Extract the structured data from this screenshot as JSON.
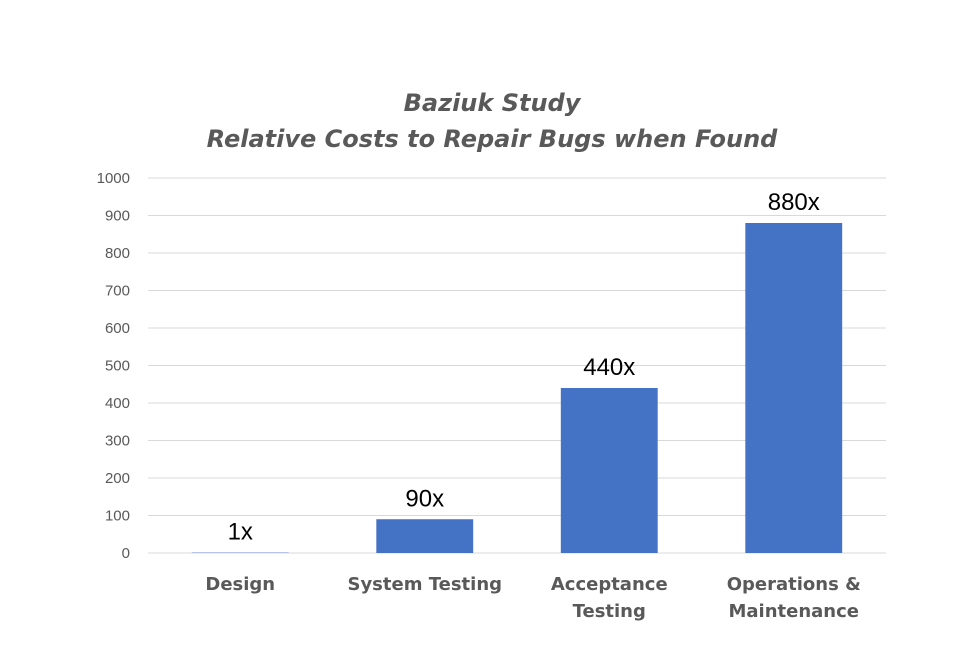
{
  "chart_data": {
    "type": "bar",
    "title": [
      "Baziuk Study",
      "Relative Costs to Repair Bugs when Found"
    ],
    "categories": [
      [
        "Design"
      ],
      [
        "System Testing"
      ],
      [
        "Acceptance",
        "Testing"
      ],
      [
        "Operations &",
        "Maintenance"
      ]
    ],
    "values": [
      1,
      90,
      440,
      880
    ],
    "data_labels": [
      "1x",
      "90x",
      "440x",
      "880x"
    ],
    "ylim": [
      0,
      1000
    ],
    "yticks": [
      0,
      100,
      200,
      300,
      400,
      500,
      600,
      700,
      800,
      900,
      1000
    ],
    "grid": true,
    "legend": "none",
    "colors": {
      "bar": "#4472C4",
      "grid": "#D9D9D9",
      "title": "#595959",
      "tick_label": "#595959",
      "category_label": "#595959",
      "data_label": "#000000"
    }
  }
}
